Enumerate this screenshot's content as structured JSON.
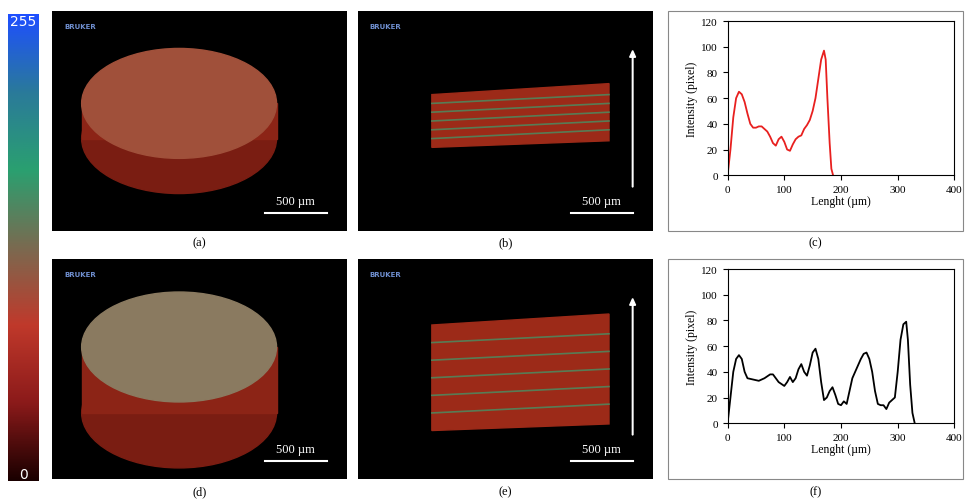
{
  "colorbar": {
    "range": [
      0,
      255
    ],
    "ticks": [
      0,
      255
    ]
  },
  "images": [
    {
      "caption": "(a)",
      "logo": "BRUKER",
      "scale_bar": "500 µm"
    },
    {
      "caption": "(b)",
      "logo": "BRUKER",
      "scale_bar": "500 µm"
    },
    {
      "caption": "(d)",
      "logo": "BRUKER",
      "scale_bar": "500 µm"
    },
    {
      "caption": "(e)",
      "logo": "BRUKER",
      "scale_bar": "500 µm"
    }
  ],
  "chart_data": [
    {
      "type": "line",
      "caption": "(c)",
      "x_label": "Lenght (µm)",
      "y_label": "Intensity (pixel)",
      "x": [
        0,
        5,
        10,
        15,
        20,
        25,
        30,
        35,
        40,
        45,
        50,
        55,
        60,
        65,
        70,
        75,
        80,
        85,
        90,
        95,
        100,
        105,
        110,
        115,
        120,
        125,
        130,
        135,
        140,
        145,
        150,
        155,
        160,
        165,
        170,
        173,
        176,
        180,
        183,
        186
      ],
      "values": [
        0,
        20,
        45,
        60,
        65,
        63,
        57,
        48,
        40,
        37,
        37,
        38,
        38,
        36,
        34,
        30,
        25,
        23,
        28,
        30,
        26,
        20,
        19,
        24,
        28,
        30,
        31,
        36,
        39,
        43,
        50,
        60,
        75,
        90,
        97,
        90,
        60,
        25,
        5,
        0
      ],
      "color": "#e8201f",
      "xlim": [
        0,
        400
      ],
      "xticks": [
        0,
        100,
        200,
        300,
        400
      ],
      "ylim": [
        0,
        120
      ],
      "yticks": [
        0,
        20,
        40,
        60,
        80,
        100,
        120
      ],
      "grid": false
    },
    {
      "type": "line",
      "caption": "(f)",
      "x_label": "Lenght (µm)",
      "y_label": "Intensity (pixel)",
      "x": [
        0,
        5,
        10,
        15,
        20,
        25,
        30,
        35,
        45,
        55,
        65,
        75,
        80,
        85,
        90,
        100,
        105,
        110,
        115,
        120,
        125,
        130,
        135,
        140,
        145,
        150,
        155,
        160,
        165,
        170,
        175,
        180,
        185,
        190,
        195,
        200,
        205,
        210,
        215,
        220,
        225,
        230,
        235,
        240,
        245,
        250,
        255,
        260,
        265,
        270,
        275,
        280,
        285,
        290,
        295,
        300,
        305,
        310,
        315,
        318,
        322,
        326,
        330
      ],
      "values": [
        0,
        20,
        40,
        50,
        53,
        50,
        40,
        35,
        34,
        33,
        35,
        38,
        38,
        35,
        32,
        29,
        32,
        36,
        32,
        35,
        42,
        46,
        40,
        37,
        45,
        55,
        58,
        50,
        32,
        18,
        20,
        25,
        28,
        22,
        15,
        14,
        17,
        15,
        25,
        35,
        40,
        45,
        50,
        54,
        55,
        50,
        40,
        25,
        15,
        14,
        14,
        11,
        16,
        18,
        20,
        40,
        65,
        77,
        79,
        65,
        30,
        8,
        0
      ],
      "color": "#000000",
      "xlim": [
        0,
        400
      ],
      "xticks": [
        0,
        100,
        200,
        300,
        400
      ],
      "ylim": [
        0,
        120
      ],
      "yticks": [
        0,
        20,
        40,
        60,
        80,
        100,
        120
      ],
      "grid": false
    }
  ]
}
